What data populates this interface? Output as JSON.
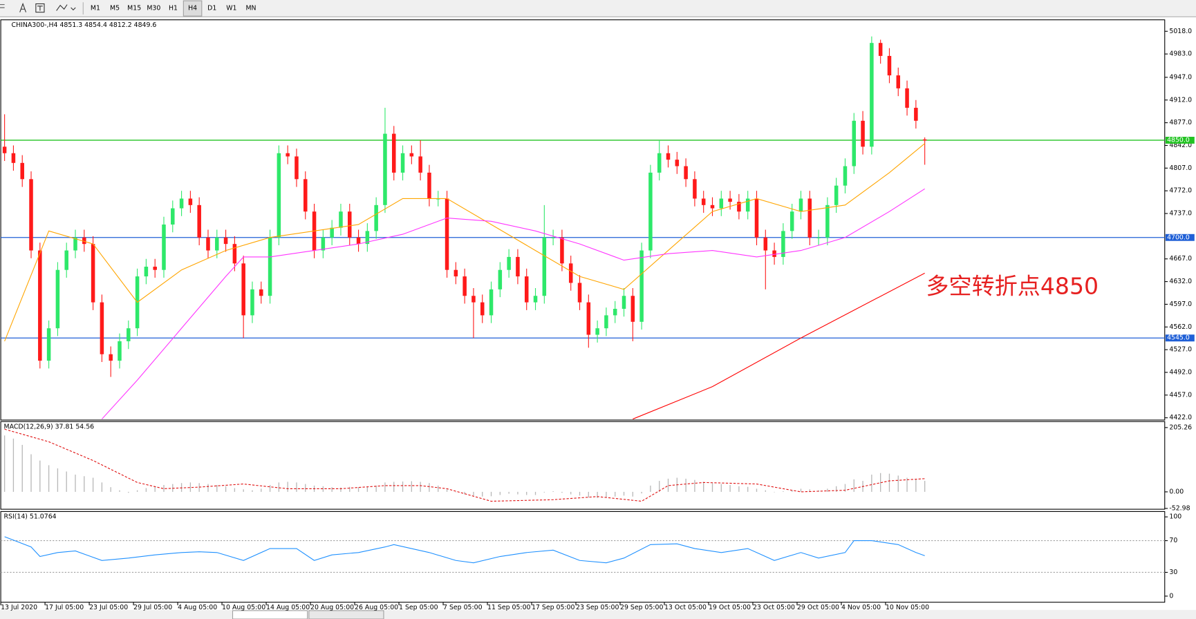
{
  "toolbar": {
    "timeframes": [
      "M1",
      "M5",
      "M15",
      "M30",
      "H1",
      "H4",
      "D1",
      "W1",
      "MN"
    ],
    "active": "H4"
  },
  "chart_data": [
    {
      "type": "candlestick",
      "title": "CHINA300-,H4  4851.3 4854.4 4812.2 4849.6",
      "categories": [
        "13 Jul 2020",
        null,
        null,
        null,
        null,
        "17 Jul 05:00",
        null,
        null,
        null,
        null,
        "23 Jul 05:00",
        null,
        null,
        null,
        null,
        "29 Jul 05:00",
        null,
        null,
        null,
        null,
        "4 Aug 05:00",
        null,
        null,
        null,
        null,
        "10 Aug 05:00",
        null,
        null,
        null,
        null,
        "14 Aug 05:00",
        null,
        null,
        null,
        null,
        "20 Aug 05:00",
        null,
        null,
        null,
        null,
        "26 Aug 05:00",
        null,
        null,
        null,
        null,
        "1 Sep 05:00",
        null,
        null,
        null,
        null,
        "7 Sep 05:00",
        null,
        null,
        null,
        null,
        "11 Sep 05:00",
        null,
        null,
        null,
        null,
        "17 Sep 05:00",
        null,
        null,
        null,
        null,
        "23 Sep 05:00",
        null,
        null,
        null,
        null,
        "29 Sep 05:00",
        null,
        null,
        null,
        null,
        "13 Oct 05:00",
        null,
        null,
        null,
        null,
        "19 Oct 05:00",
        null,
        null,
        null,
        null,
        "23 Oct 05:00",
        null,
        null,
        null,
        null,
        "29 Oct 05:00",
        null,
        null,
        null,
        null,
        "4 Nov 05:00",
        null,
        null,
        null,
        null,
        "10 Nov 05:00",
        null,
        null,
        null,
        null
      ],
      "open": [
        4840,
        4830,
        4815,
        4790,
        4680,
        4510,
        4560,
        4650,
        4680,
        4700,
        4690,
        4600,
        4520,
        4510,
        4540,
        4560,
        4640,
        4655,
        4650,
        4720,
        4745,
        4760,
        4750,
        4700,
        4680,
        4700,
        4690,
        4660,
        4580,
        4620,
        4610,
        4700,
        4830,
        4825,
        4790,
        4740,
        4680,
        4700,
        4715,
        4740,
        4700,
        4690,
        4710,
        4750,
        4860,
        4800,
        4830,
        4825,
        4800,
        4760,
        4760,
        4650,
        4640,
        4610,
        4600,
        4580,
        4620,
        4650,
        4670,
        4640,
        4600,
        4610,
        4700,
        4700,
        4660,
        4630,
        4600,
        4550,
        4560,
        4580,
        4590,
        4610,
        4570,
        4680,
        4800,
        4830,
        4820,
        4810,
        4790,
        4760,
        4750,
        4745,
        4760,
        4755,
        4740,
        4760,
        4700,
        4680,
        4670,
        4710,
        4740,
        4760,
        4700,
        4700,
        4750,
        4780,
        4810,
        4880,
        4840,
        5000,
        4980,
        4950,
        4930,
        4900,
        4851.3
      ],
      "high": [
        4890,
        4842,
        4827,
        4802,
        4692,
        4572,
        4662,
        4692,
        4712,
        4712,
        4702,
        4612,
        4532,
        4552,
        4572,
        4652,
        4667,
        4667,
        4732,
        4757,
        4772,
        4772,
        4762,
        4712,
        4712,
        4712,
        4702,
        4672,
        4632,
        4632,
        4712,
        4842,
        4842,
        4837,
        4802,
        4752,
        4712,
        4727,
        4752,
        4752,
        4712,
        4722,
        4762,
        4900,
        4872,
        4842,
        4842,
        4850,
        4812,
        4772,
        4772,
        4662,
        4652,
        4622,
        4612,
        4632,
        4662,
        4682,
        4682,
        4652,
        4622,
        4750,
        4712,
        4712,
        4672,
        4642,
        4612,
        4572,
        4592,
        4602,
        4622,
        4622,
        4692,
        4812,
        4850,
        4842,
        4832,
        4822,
        4802,
        4772,
        4762,
        4772,
        4772,
        4767,
        4772,
        4772,
        4712,
        4692,
        4722,
        4752,
        4772,
        4772,
        4712,
        4762,
        4792,
        4822,
        4892,
        4895,
        5010,
        5005,
        4992,
        4962,
        4942,
        4912,
        4854.4
      ],
      "low": [
        4818,
        4803,
        4778,
        4668,
        4498,
        4498,
        4548,
        4638,
        4668,
        4678,
        4588,
        4508,
        4485,
        4498,
        4528,
        4548,
        4628,
        4638,
        4638,
        4708,
        4733,
        4738,
        4688,
        4668,
        4668,
        4678,
        4648,
        4545,
        4568,
        4598,
        4598,
        4688,
        4813,
        4778,
        4728,
        4668,
        4668,
        4688,
        4703,
        4688,
        4678,
        4678,
        4698,
        4738,
        4788,
        4788,
        4813,
        4788,
        4748,
        4748,
        4638,
        4628,
        4598,
        4545,
        4568,
        4568,
        4608,
        4638,
        4628,
        4588,
        4588,
        4598,
        4688,
        4648,
        4618,
        4588,
        4530,
        4538,
        4548,
        4568,
        4578,
        4540,
        4558,
        4668,
        4788,
        4808,
        4798,
        4778,
        4748,
        4738,
        4733,
        4733,
        4743,
        4728,
        4728,
        4688,
        4620,
        4658,
        4658,
        4698,
        4728,
        4688,
        4688,
        4688,
        4738,
        4768,
        4798,
        4828,
        4828,
        4968,
        4938,
        4918,
        4888,
        4868,
        4812.2
      ],
      "close": [
        4830,
        4815,
        4790,
        4680,
        4510,
        4560,
        4650,
        4680,
        4700,
        4690,
        4600,
        4520,
        4510,
        4540,
        4560,
        4640,
        4655,
        4650,
        4720,
        4745,
        4760,
        4750,
        4700,
        4680,
        4700,
        4690,
        4660,
        4580,
        4620,
        4610,
        4700,
        4830,
        4825,
        4790,
        4740,
        4680,
        4700,
        4715,
        4740,
        4700,
        4690,
        4710,
        4750,
        4860,
        4800,
        4830,
        4825,
        4800,
        4760,
        4760,
        4650,
        4640,
        4610,
        4600,
        4580,
        4620,
        4650,
        4670,
        4640,
        4600,
        4610,
        4700,
        4700,
        4660,
        4630,
        4600,
        4550,
        4560,
        4580,
        4590,
        4610,
        4570,
        4680,
        4800,
        4830,
        4820,
        4810,
        4790,
        4760,
        4750,
        4745,
        4760,
        4755,
        4740,
        4760,
        4700,
        4680,
        4670,
        4710,
        4740,
        4760,
        4700,
        4700,
        4750,
        4780,
        4810,
        4880,
        4840,
        5000,
        4980,
        4950,
        4930,
        4900,
        4880,
        4849.6
      ],
      "up_color": "#2ee86a",
      "down_color": "#ff1a1a",
      "ylim": [
        4418.5,
        5034.5
      ],
      "yticks": [
        {
          "value": 5018,
          "label": "5018.0"
        },
        {
          "value": 4983,
          "label": "4983.0"
        },
        {
          "value": 4947,
          "label": "4947.0"
        },
        {
          "value": 4912,
          "label": "4912.0"
        },
        {
          "value": 4877,
          "label": "4877.0"
        },
        {
          "value": 4842,
          "label": "4842.0"
        },
        {
          "value": 4807,
          "label": "4807.0"
        },
        {
          "value": 4772,
          "label": "4772.0"
        },
        {
          "value": 4737,
          "label": "4737.0"
        },
        {
          "value": 4667,
          "label": "4667.0"
        },
        {
          "value": 4632,
          "label": "4632.0"
        },
        {
          "value": 4597,
          "label": "4597.0"
        },
        {
          "value": 4562,
          "label": "4562.0"
        },
        {
          "value": 4527,
          "label": "4527.0"
        },
        {
          "value": 4492,
          "label": "4492.0"
        },
        {
          "value": 4457,
          "label": "4457.0"
        },
        {
          "value": 4422,
          "label": "4422.0"
        }
      ],
      "lines": [
        {
          "color": "#ffa500",
          "x": [
            0,
            5,
            10,
            15,
            20,
            25,
            30,
            35,
            40,
            45,
            50,
            55,
            60,
            65,
            70,
            75,
            80,
            85,
            90,
            95,
            100,
            104
          ],
          "values": [
            4540,
            4710,
            4690,
            4600,
            4650,
            4680,
            4700,
            4710,
            4720,
            4760,
            4760,
            4720,
            4680,
            4640,
            4620,
            4680,
            4740,
            4760,
            4740,
            4750,
            4800,
            4845
          ]
        },
        {
          "color": "#ff33ff",
          "x": [
            11,
            15,
            20,
            25,
            27,
            30,
            35,
            40,
            45,
            50,
            55,
            60,
            65,
            70,
            75,
            80,
            85,
            90,
            95,
            100,
            104
          ],
          "values": [
            4420,
            4480,
            4560,
            4640,
            4670,
            4670,
            4680,
            4690,
            4705,
            4730,
            4725,
            4710,
            4690,
            4665,
            4675,
            4680,
            4670,
            4680,
            4700,
            4740,
            4775
          ]
        },
        {
          "color": "#ff0000",
          "x": [
            71,
            80,
            90,
            104
          ],
          "values": [
            4420,
            4470,
            4545,
            4645
          ]
        }
      ],
      "hlines": [
        {
          "value": 4850,
          "label": "4850.0",
          "color": "#22c322"
        },
        {
          "value": 4700,
          "label": "4700.0",
          "color": "#1f5fd6"
        },
        {
          "value": 4545,
          "label": "4545.0",
          "color": "#1f5fd6"
        }
      ],
      "annotation": {
        "text": "多空转折点4850",
        "color": "#e62020"
      }
    },
    {
      "type": "macd",
      "title": "MACD(12,26,9) 37.81 54.56",
      "ylim": [
        -55.5,
        222
      ],
      "yticks": [
        {
          "value": 205.26,
          "label": "205.26"
        },
        {
          "value": 0,
          "label": "0.00"
        },
        {
          "value": -52.98,
          "label": "-52.98"
        }
      ],
      "histogram": {
        "color": "#b8b8b8",
        "values": [
          180,
          170,
          150,
          120,
          100,
          85,
          75,
          65,
          55,
          50,
          45,
          30,
          15,
          5,
          -3,
          5,
          12,
          18,
          22,
          25,
          28,
          30,
          28,
          25,
          22,
          18,
          12,
          8,
          5,
          10,
          22,
          30,
          32,
          30,
          25,
          20,
          18,
          15,
          14,
          16,
          15,
          16,
          20,
          30,
          32,
          33,
          34,
          32,
          28,
          20,
          8,
          0,
          -8,
          -12,
          -15,
          -14,
          -10,
          -6,
          -8,
          -10,
          -10,
          -2,
          2,
          -3,
          -8,
          -12,
          -18,
          -20,
          -18,
          -15,
          -12,
          -15,
          -5,
          20,
          35,
          42,
          45,
          42,
          38,
          32,
          28,
          25,
          22,
          18,
          16,
          10,
          5,
          0,
          2,
          6,
          10,
          8,
          5,
          10,
          18,
          25,
          40,
          35,
          55,
          60,
          58,
          52,
          45,
          40,
          35
        ]
      },
      "signal": {
        "color": "#e01010",
        "x": [
          0,
          5,
          10,
          15,
          18,
          22,
          27,
          32,
          38,
          43,
          47,
          50,
          55,
          62,
          67,
          72,
          75,
          79,
          85,
          90,
          95,
          100,
          104
        ],
        "values": [
          200,
          160,
          100,
          30,
          10,
          15,
          25,
          10,
          10,
          20,
          20,
          10,
          -30,
          -25,
          -15,
          -30,
          20,
          30,
          25,
          0,
          5,
          35,
          42
        ]
      }
    },
    {
      "type": "rsi",
      "title": "RSI(14) 51.0764",
      "ylim": [
        -7.7,
        105.8
      ],
      "yticks": [
        100,
        70,
        30,
        0
      ],
      "levels": [
        70,
        30
      ],
      "line": {
        "color": "#1e90ff",
        "x": [
          0,
          3,
          4,
          6,
          8,
          11,
          14,
          17,
          20,
          22,
          24,
          27,
          30,
          33,
          35,
          37,
          40,
          43,
          44,
          48,
          51,
          53,
          56,
          59,
          62,
          65,
          68,
          70,
          73,
          76,
          78,
          81,
          84,
          87,
          90,
          92,
          95,
          96,
          98,
          101,
          103,
          104
        ],
        "values": [
          75,
          62,
          50,
          55,
          57,
          45,
          48,
          52,
          55,
          56,
          55,
          45,
          60,
          60,
          45,
          52,
          55,
          62,
          65,
          55,
          45,
          42,
          50,
          55,
          58,
          45,
          42,
          48,
          65,
          66,
          60,
          55,
          60,
          45,
          55,
          48,
          55,
          70,
          70,
          65,
          55,
          51
        ]
      }
    }
  ]
}
